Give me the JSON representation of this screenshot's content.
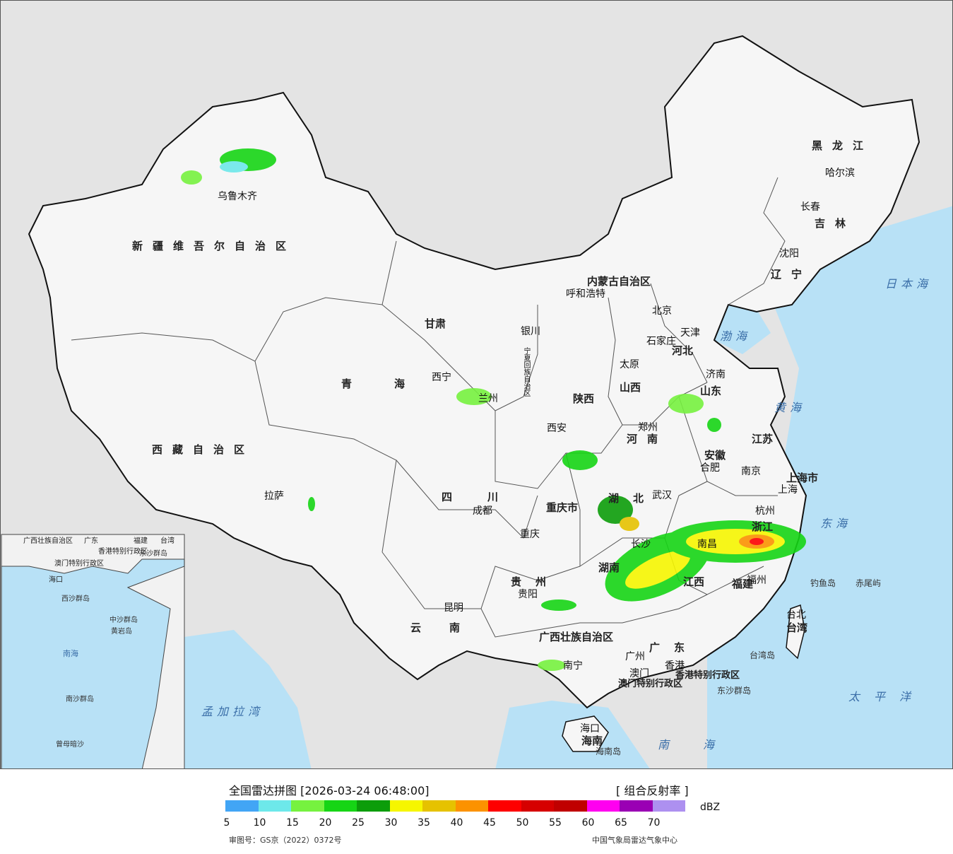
{
  "map": {
    "provinces": [
      {
        "name": "新疆维吾尔自治区"
      },
      {
        "name": "西藏自治区"
      },
      {
        "name": "青海"
      },
      {
        "name": "甘肃"
      },
      {
        "name": "内蒙古自治区"
      },
      {
        "name": "黑龙江"
      },
      {
        "name": "吉林"
      },
      {
        "name": "辽宁"
      },
      {
        "name": "河北"
      },
      {
        "name": "山西"
      },
      {
        "name": "山东"
      },
      {
        "name": "河南"
      },
      {
        "name": "陕西"
      },
      {
        "name": "四川"
      },
      {
        "name": "重庆市"
      },
      {
        "name": "湖北"
      },
      {
        "name": "安徽"
      },
      {
        "name": "江苏"
      },
      {
        "name": "上海市"
      },
      {
        "name": "浙江"
      },
      {
        "name": "江西"
      },
      {
        "name": "湖南"
      },
      {
        "name": "贵州"
      },
      {
        "name": "云南"
      },
      {
        "name": "广西壮族自治区"
      },
      {
        "name": "广东"
      },
      {
        "name": "福建"
      },
      {
        "name": "台湾"
      },
      {
        "name": "海南"
      },
      {
        "name": "宁夏回族自治区"
      },
      {
        "name": "香港特别行政区"
      },
      {
        "name": "澳门特别行政区"
      }
    ],
    "cities": [
      "乌鲁木齐",
      "拉萨",
      "西宁",
      "兰州",
      "银川",
      "呼和浩特",
      "北京",
      "天津",
      "石家庄",
      "太原",
      "济南",
      "郑州",
      "西安",
      "成都",
      "重庆",
      "武汉",
      "合肥",
      "南京",
      "上海",
      "杭州",
      "南昌",
      "长沙",
      "福州",
      "台北",
      "贵阳",
      "昆明",
      "南宁",
      "广州",
      "香港",
      "澳门",
      "海口",
      "哈尔滨",
      "长春",
      "沈阳"
    ],
    "seas": [
      "渤海",
      "黄海",
      "东海",
      "日本海",
      "南海",
      "太平洋",
      "孟加拉湾"
    ],
    "islands": [
      "钓鱼岛",
      "赤尾屿",
      "台湾岛",
      "东沙群岛",
      "海南岛"
    ],
    "inset_labels": [
      "广西壮族自治区",
      "广东",
      "福建",
      "台湾",
      "香港特别行政区",
      "澳门特别行政区",
      "海口",
      "东沙群岛",
      "西沙群岛",
      "中沙群岛",
      "南海",
      "南沙群岛",
      "曾母暗沙",
      "黄岩岛"
    ]
  },
  "legend": {
    "title": "全国雷达拼图 [2026-03-24 06:48:00]",
    "product": "[ 组合反射率 ]",
    "unit": "dBZ",
    "ticks": [
      "5",
      "10",
      "15",
      "20",
      "25",
      "30",
      "35",
      "40",
      "45",
      "50",
      "55",
      "60",
      "65",
      "70"
    ],
    "colors": [
      "#42a5f5",
      "#6de8ea",
      "#76f23f",
      "#16d515",
      "#0c9d0a",
      "#f6f600",
      "#e6c200",
      "#fc9200",
      "#fe0000",
      "#d60000",
      "#c00000",
      "#ff00f0",
      "#9a00b4",
      "#ad90f0"
    ],
    "review_no": "审图号：GS京（2022）0372号",
    "agency": "中国气象局雷达气象中心"
  }
}
